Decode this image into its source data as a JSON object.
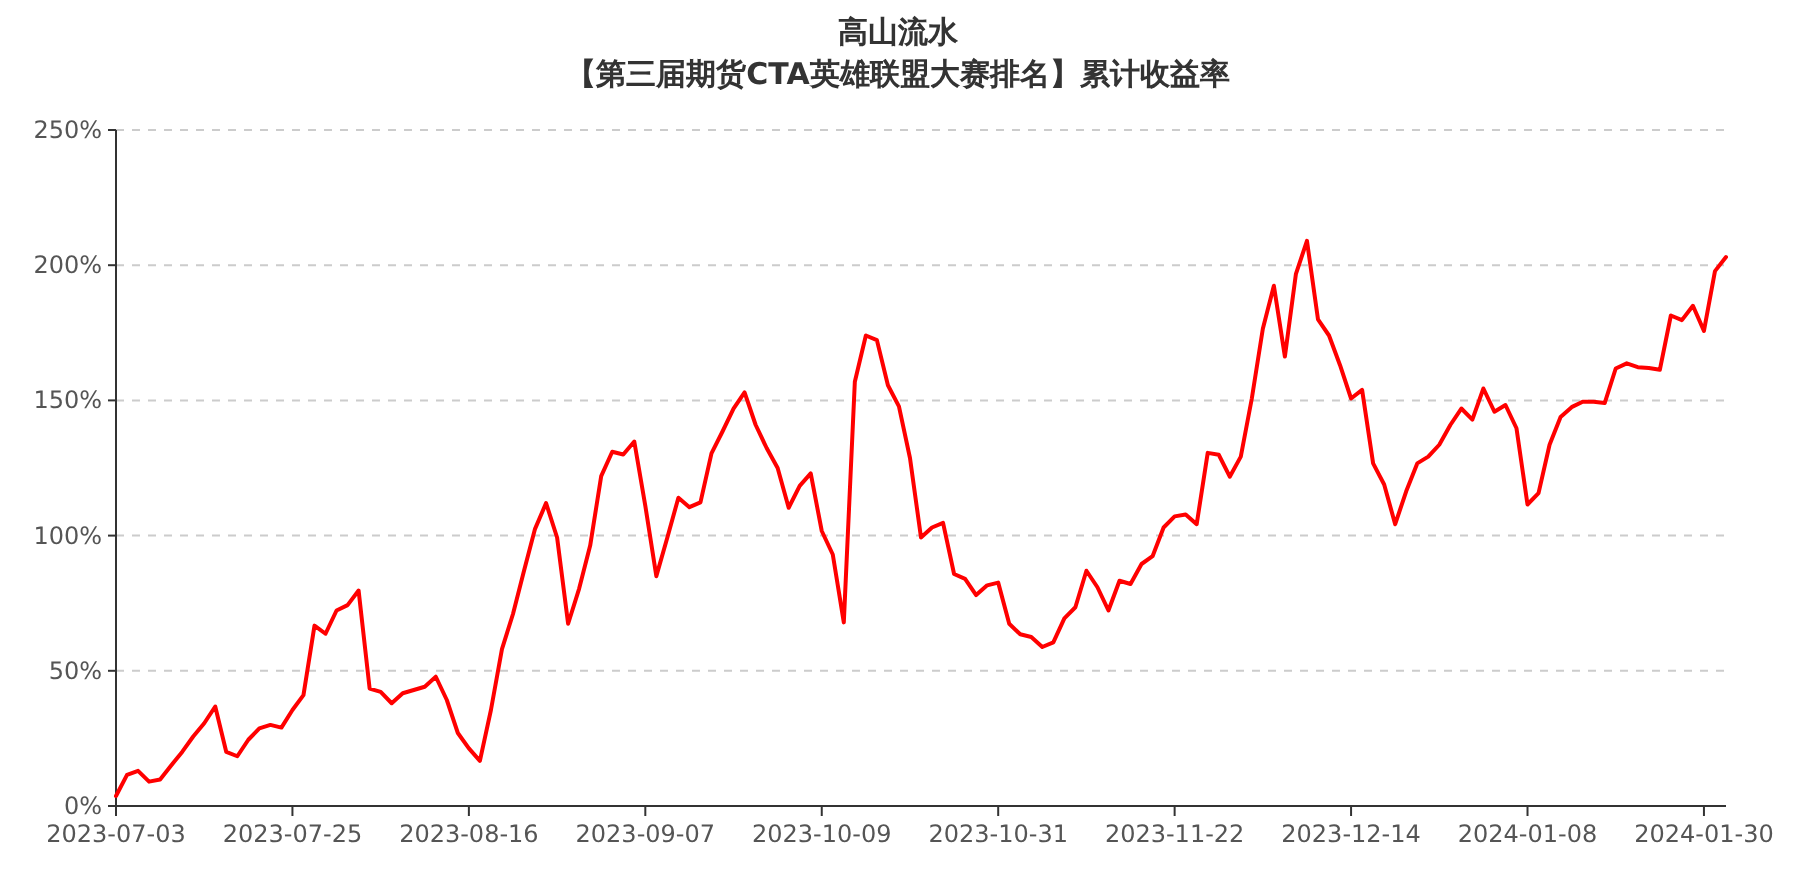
{
  "chart_data": {
    "type": "line",
    "title": "高山流水",
    "subtitle": "【第三届期货CTA英雄联盟大赛排名】累计收益率",
    "categories": [
      "2023-07-03",
      null,
      null,
      null,
      null,
      null,
      null,
      null,
      null,
      null,
      null,
      null,
      null,
      null,
      null,
      null,
      "2023-07-25",
      null,
      null,
      null,
      null,
      null,
      null,
      null,
      null,
      null,
      null,
      null,
      null,
      null,
      null,
      null,
      "2023-08-16",
      null,
      null,
      null,
      null,
      null,
      null,
      null,
      null,
      null,
      null,
      null,
      null,
      null,
      null,
      null,
      "2023-09-07",
      null,
      null,
      null,
      null,
      null,
      null,
      null,
      null,
      null,
      null,
      null,
      null,
      null,
      null,
      null,
      "2023-10-09",
      null,
      null,
      null,
      null,
      null,
      null,
      null,
      null,
      null,
      null,
      null,
      null,
      null,
      null,
      null,
      "2023-10-31",
      null,
      null,
      null,
      null,
      null,
      null,
      null,
      null,
      null,
      null,
      null,
      null,
      null,
      null,
      null,
      "2023-11-22",
      null,
      null,
      null,
      null,
      null,
      null,
      null,
      null,
      null,
      null,
      null,
      null,
      null,
      null,
      null,
      "2023-12-14",
      null,
      null,
      null,
      null,
      null,
      null,
      null,
      null,
      null,
      null,
      null,
      null,
      null,
      null,
      null,
      "2024-01-08",
      null,
      null,
      null,
      null,
      null,
      null,
      null,
      null,
      null,
      null,
      null,
      null,
      null,
      null,
      null,
      "2024-01-30",
      null,
      null
    ],
    "series": [
      {
        "color": "#ff0000",
        "values": [
          3.7,
          11.5,
          13,
          9,
          9.8,
          15,
          20,
          25.7,
          30.6,
          36.8,
          20,
          18.4,
          24.5,
          28.7,
          30,
          29,
          35.5,
          41,
          66.7,
          63.7,
          72.3,
          74.3,
          79.7,
          43.4,
          42.2,
          38,
          41.7,
          42.9,
          44.1,
          47.8,
          39.2,
          27,
          21.3,
          16.7,
          35.5,
          58,
          71,
          87,
          102.5,
          112,
          99.3,
          67.4,
          80.4,
          96.3,
          122,
          131,
          130,
          134.8,
          111,
          85,
          99.3,
          114,
          110.5,
          112.3,
          130.4,
          138.5,
          147,
          153,
          141,
          132.4,
          125,
          110.3,
          118.4,
          123,
          101.7,
          93,
          67.9,
          156.9,
          174,
          172.3,
          155.6,
          147.8,
          128.7,
          99.3,
          103,
          104.7,
          85.8,
          84,
          78,
          81.6,
          82.6,
          67.4,
          63.5,
          62.5,
          58.8,
          60.5,
          69.4,
          73.5,
          87,
          80.9,
          72.3,
          83.3,
          82.1,
          89.5,
          92.4,
          103,
          107.1,
          107.8,
          104.2,
          130.6,
          129.9,
          121.8,
          129.2,
          150.7,
          176.5,
          192.4,
          166.2,
          196.8,
          209,
          180,
          174,
          163,
          150.7,
          153.9,
          126.7,
          118.9,
          104.2,
          116.4,
          126.7,
          129.2,
          133.6,
          140.9,
          147,
          142.9,
          154.4,
          145.8,
          148.3,
          139.7,
          111.5,
          115.7,
          133.6,
          143.9,
          147.5,
          149.5,
          149.5,
          149,
          161.8,
          163.7,
          162.3,
          162,
          161.3,
          181.4,
          179.7,
          185,
          175.7,
          197.8,
          203
        ]
      }
    ],
    "ylim": [
      0,
      250
    ],
    "yticks": [
      {
        "value": 0,
        "label": "0%"
      },
      {
        "value": 50,
        "label": "50%"
      },
      {
        "value": 100,
        "label": "100%"
      },
      {
        "value": 150,
        "label": "150%"
      },
      {
        "value": 200,
        "label": "200%"
      },
      {
        "value": 250,
        "label": "250%"
      }
    ],
    "grid": "y",
    "line_style": "solid"
  }
}
